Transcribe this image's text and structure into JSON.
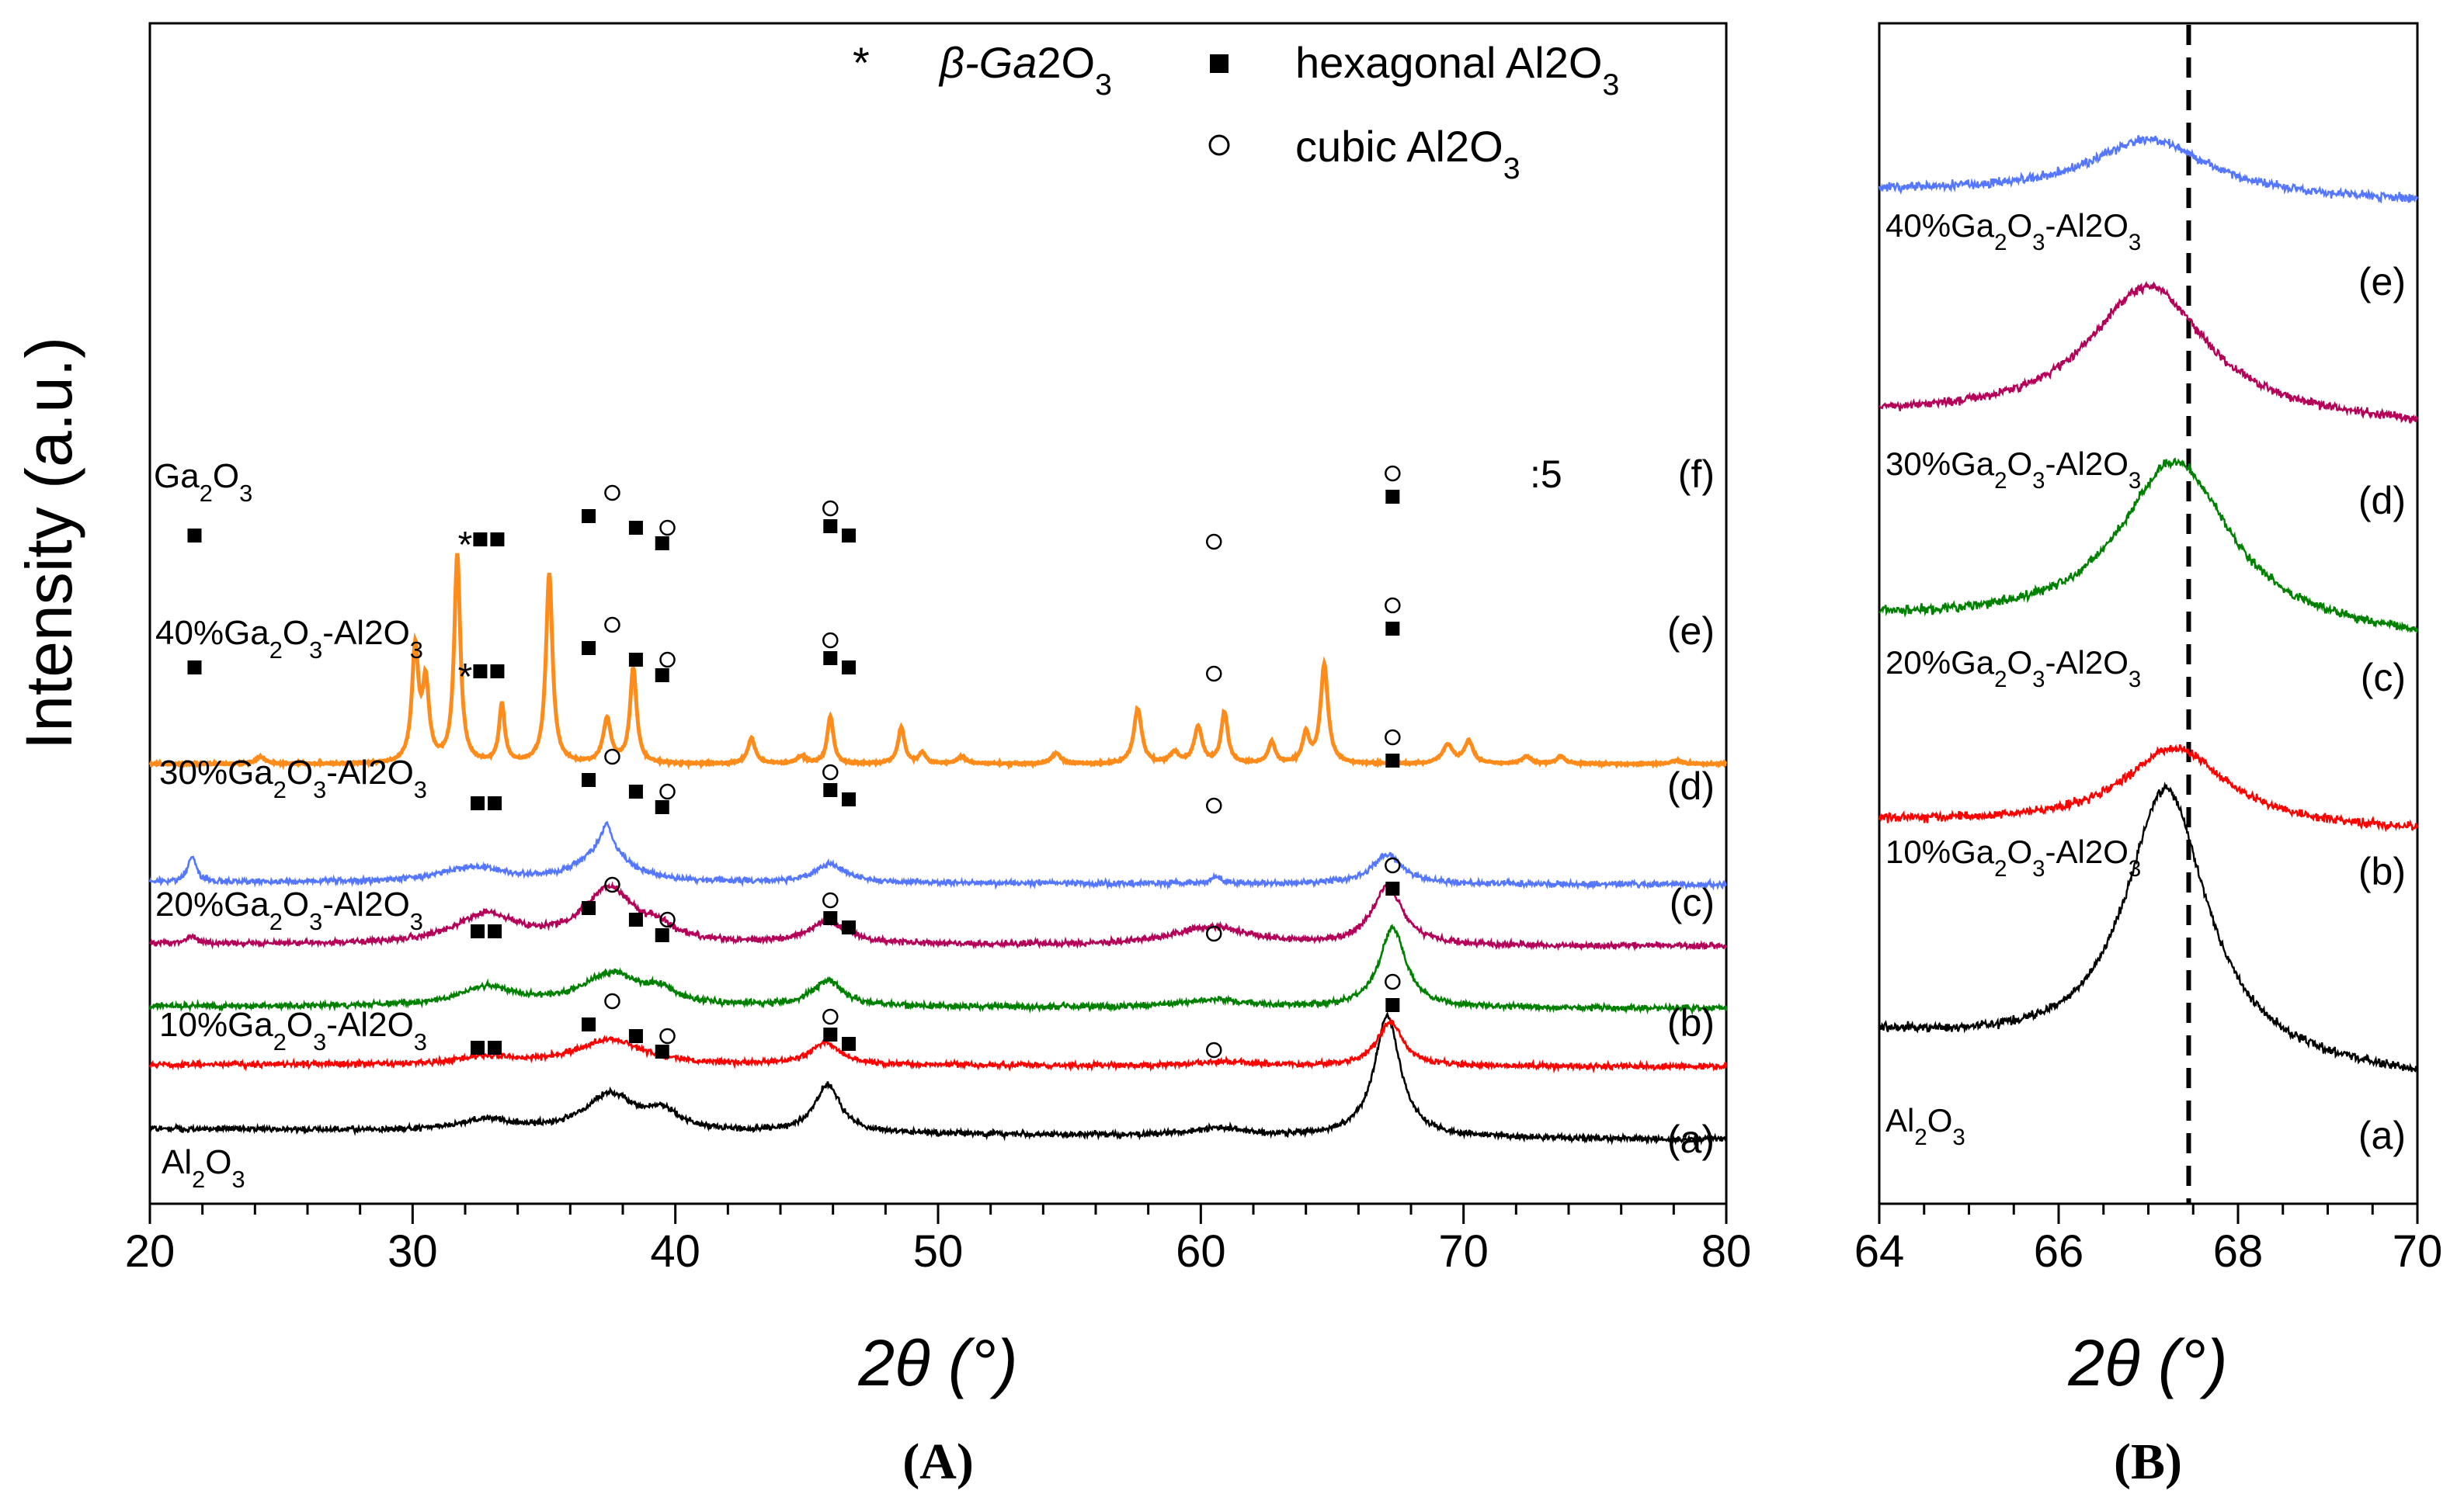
{
  "figure": {
    "panel_a_label": "(A)",
    "panel_b_label": "(B)"
  },
  "legend": {
    "star_symbol": "*",
    "star_label": "β-Ga2O3",
    "hex_label": "hexagonal Al2O3",
    "cubic_label": "cubic Al2O3"
  },
  "chart_data": [
    {
      "id": "A",
      "type": "line",
      "ylabel": "Intensity (a.u.)",
      "xlabel": "2θ (°)",
      "xlim": [
        20,
        80
      ],
      "xticks": [
        20,
        30,
        40,
        50,
        60,
        70,
        80
      ],
      "y_ticks_shown": false,
      "scale_note": ":5",
      "series": [
        {
          "id": "a",
          "letter": "(a)",
          "name": "Al2O3",
          "color": "#000000",
          "offset": 0.02,
          "baseline": 0.05,
          "peaks": [
            [
              32.8,
              0.03,
              1.2
            ],
            [
              37.5,
              0.1,
              1.1
            ],
            [
              39.5,
              0.05,
              0.8
            ],
            [
              45.8,
              0.13,
              0.6
            ],
            [
              60.7,
              0.02,
              1.2
            ],
            [
              67.1,
              0.33,
              0.6
            ]
          ],
          "markers": [
            {
              "x": 32.8,
              "m": "■■"
            },
            {
              "x": 36.7,
              "m": "■"
            },
            {
              "x": 37.6,
              "m": "○"
            },
            {
              "x": 38.5,
              "m": "■"
            },
            {
              "x": 39.5,
              "m": "■"
            },
            {
              "x": 39.7,
              "m": "○"
            },
            {
              "x": 45.9,
              "m": "■"
            },
            {
              "x": 45.9,
              "m": "○"
            },
            {
              "x": 46.6,
              "m": "■"
            },
            {
              "x": 60.5,
              "m": "○"
            },
            {
              "x": 67.3,
              "m": "■"
            },
            {
              "x": 67.3,
              "m": "○"
            }
          ]
        },
        {
          "id": "b",
          "letter": "(b)",
          "name": "10%Ga2O3-Al2O3",
          "color": "#ff0000",
          "offset": 0.22,
          "baseline": 0.01,
          "peaks": [
            [
              32.8,
              0.02,
              1.2
            ],
            [
              37.5,
              0.07,
              1.5
            ],
            [
              45.7,
              0.06,
              0.7
            ],
            [
              60.8,
              0.01,
              1.5
            ],
            [
              67.2,
              0.12,
              0.6
            ]
          ],
          "markers": [
            {
              "x": 32.8,
              "m": "■■"
            },
            {
              "x": 36.7,
              "m": "■"
            },
            {
              "x": 37.6,
              "m": "○"
            },
            {
              "x": 38.5,
              "m": "■"
            },
            {
              "x": 39.5,
              "m": "■"
            },
            {
              "x": 39.7,
              "m": "○"
            },
            {
              "x": 45.9,
              "m": "■"
            },
            {
              "x": 45.9,
              "m": "○"
            },
            {
              "x": 46.6,
              "m": "■"
            },
            {
              "x": 60.5,
              "m": "○"
            },
            {
              "x": 67.3,
              "m": "■"
            },
            {
              "x": 67.3,
              "m": "○"
            }
          ]
        },
        {
          "id": "c",
          "letter": "(c)",
          "name": "20%Ga2O3-Al2O3",
          "color": "#008000",
          "offset": 0.38,
          "baseline": 0.01,
          "peaks": [
            [
              32.8,
              0.05,
              1.3
            ],
            [
              37.6,
              0.09,
              1.4
            ],
            [
              39.5,
              0.03,
              0.6
            ],
            [
              45.8,
              0.07,
              0.7
            ],
            [
              60.5,
              0.02,
              1.5
            ],
            [
              67.3,
              0.22,
              0.6
            ]
          ],
          "markers": [
            {
              "x": 32.8,
              "m": "■■"
            },
            {
              "x": 36.7,
              "m": "■"
            },
            {
              "x": 37.6,
              "m": "○"
            },
            {
              "x": 38.5,
              "m": "■"
            },
            {
              "x": 39.5,
              "m": "■"
            },
            {
              "x": 39.7,
              "m": "○"
            },
            {
              "x": 45.9,
              "m": "■"
            },
            {
              "x": 45.9,
              "m": "○"
            },
            {
              "x": 46.6,
              "m": "■"
            },
            {
              "x": 60.5,
              "m": "○"
            },
            {
              "x": 67.3,
              "m": "■"
            },
            {
              "x": 67.3,
              "m": "○"
            }
          ]
        },
        {
          "id": "d",
          "letter": "(d)",
          "name": "30%Ga2O3-Al2O3",
          "color": "#b30059",
          "offset": 0.55,
          "baseline": 0.01,
          "peaks": [
            [
              21.6,
              0.02,
              0.25
            ],
            [
              32.8,
              0.08,
              1.4
            ],
            [
              37.5,
              0.15,
              1.2
            ],
            [
              39.4,
              0.03,
              0.6
            ],
            [
              45.8,
              0.06,
              0.9
            ],
            [
              60.4,
              0.05,
              1.8
            ],
            [
              67.1,
              0.16,
              0.7
            ]
          ],
          "markers": [
            {
              "x": 21.7,
              "m": "■"
            },
            {
              "x": 32.0,
              "m": "*"
            },
            {
              "x": 32.9,
              "m": "■■"
            },
            {
              "x": 36.7,
              "m": "■"
            },
            {
              "x": 37.6,
              "m": "○"
            },
            {
              "x": 38.5,
              "m": "■"
            },
            {
              "x": 39.5,
              "m": "■"
            },
            {
              "x": 39.7,
              "m": "○"
            },
            {
              "x": 45.9,
              "m": "■"
            },
            {
              "x": 45.9,
              "m": "○"
            },
            {
              "x": 46.6,
              "m": "■"
            },
            {
              "x": 60.5,
              "m": "○"
            },
            {
              "x": 67.3,
              "m": "■"
            },
            {
              "x": 67.3,
              "m": "○"
            }
          ]
        },
        {
          "id": "e",
          "letter": "(e)",
          "name": "40%Ga2O3-Al2O3",
          "color": "#5577ff",
          "offset": 0.72,
          "baseline": 0.01,
          "peaks": [
            [
              21.6,
              0.07,
              0.2
            ],
            [
              32.3,
              0.04,
              1.6
            ],
            [
              37.3,
              0.1,
              1.0
            ],
            [
              37.4,
              0.06,
              0.2
            ],
            [
              45.9,
              0.05,
              0.7
            ],
            [
              60.6,
              0.02,
              0.2
            ],
            [
              67.1,
              0.08,
              0.7
            ]
          ],
          "markers": [
            {
              "x": 21.7,
              "m": "■"
            },
            {
              "x": 32.0,
              "m": "*"
            },
            {
              "x": 32.9,
              "m": "■■"
            },
            {
              "x": 36.7,
              "m": "■"
            },
            {
              "x": 37.6,
              "m": "○"
            },
            {
              "x": 38.5,
              "m": "■"
            },
            {
              "x": 39.5,
              "m": "■"
            },
            {
              "x": 39.7,
              "m": "○"
            },
            {
              "x": 45.9,
              "m": "■"
            },
            {
              "x": 45.9,
              "m": "○"
            },
            {
              "x": 46.6,
              "m": "■"
            },
            {
              "x": 60.5,
              "m": "○"
            },
            {
              "x": 67.3,
              "m": "■"
            },
            {
              "x": 67.3,
              "m": "○"
            }
          ]
        },
        {
          "id": "f",
          "letter": "(f)",
          "name": "Ga2O3",
          "color": "#ff8c1a",
          "offset": 1.05,
          "baseline": 0.0,
          "peaks": [
            [
              24.2,
              0.02,
              0.2
            ],
            [
              30.1,
              0.31,
              0.15
            ],
            [
              30.5,
              0.21,
              0.15
            ],
            [
              31.7,
              0.57,
              0.14
            ],
            [
              33.4,
              0.16,
              0.13
            ],
            [
              35.2,
              0.52,
              0.15
            ],
            [
              37.4,
              0.12,
              0.18
            ],
            [
              38.4,
              0.26,
              0.15
            ],
            [
              42.9,
              0.07,
              0.17
            ],
            [
              44.8,
              0.02,
              0.2
            ],
            [
              45.9,
              0.13,
              0.14
            ],
            [
              48.6,
              0.1,
              0.15
            ],
            [
              49.4,
              0.03,
              0.15
            ],
            [
              50.9,
              0.02,
              0.2
            ],
            [
              54.5,
              0.03,
              0.2
            ],
            [
              57.6,
              0.15,
              0.18
            ],
            [
              59.0,
              0.03,
              0.2
            ],
            [
              59.9,
              0.1,
              0.18
            ],
            [
              60.9,
              0.14,
              0.15
            ],
            [
              62.7,
              0.06,
              0.15
            ],
            [
              64.0,
              0.08,
              0.15
            ],
            [
              64.7,
              0.27,
              0.17
            ],
            [
              69.4,
              0.05,
              0.25
            ],
            [
              70.2,
              0.06,
              0.2
            ],
            [
              72.4,
              0.02,
              0.2
            ],
            [
              73.7,
              0.02,
              0.2
            ],
            [
              78.1,
              0.01,
              0.25
            ]
          ],
          "markers": []
        }
      ]
    },
    {
      "id": "B",
      "type": "line",
      "xlabel": "2θ (°)",
      "xlim": [
        64,
        70
      ],
      "xticks": [
        64,
        66,
        68,
        70
      ],
      "reference_line_x": 67.45,
      "series": [
        {
          "id": "a",
          "letter": "(a)",
          "name": "Al2O3",
          "color": "#000000",
          "offset": 0.0,
          "base": [
            0.06,
            0.02
          ],
          "peaks": [
            [
              67.2,
              0.24,
              0.55
            ]
          ]
        },
        {
          "id": "b",
          "letter": "(b)",
          "name": "10%Ga2O3-Al2O3",
          "color": "#ff0000",
          "offset": 0.22,
          "base": [
            0.03,
            0.02
          ],
          "peaks": [
            [
              67.3,
              0.07,
              0.7
            ]
          ]
        },
        {
          "id": "c",
          "letter": "(c)",
          "name": "20%Ga2O3-Al2O3",
          "color": "#008000",
          "offset": 0.38,
          "base": [
            0.05,
            0.03
          ],
          "peaks": [
            [
              67.3,
              0.15,
              0.75
            ]
          ]
        },
        {
          "id": "d",
          "letter": "(d)",
          "name": "30%Ga2O3-Al2O3",
          "color": "#b30059",
          "offset": 0.55,
          "base": [
            0.06,
            0.05
          ],
          "peaks": [
            [
              67.0,
              0.12,
              0.8
            ]
          ]
        },
        {
          "id": "e",
          "letter": "(e)",
          "name": "40%Ga2O3-Al2O3",
          "color": "#5577ff",
          "offset": 0.78,
          "base": [
            0.03,
            0.02
          ],
          "peaks": [
            [
              67.0,
              0.05,
              0.8
            ]
          ]
        }
      ]
    }
  ]
}
